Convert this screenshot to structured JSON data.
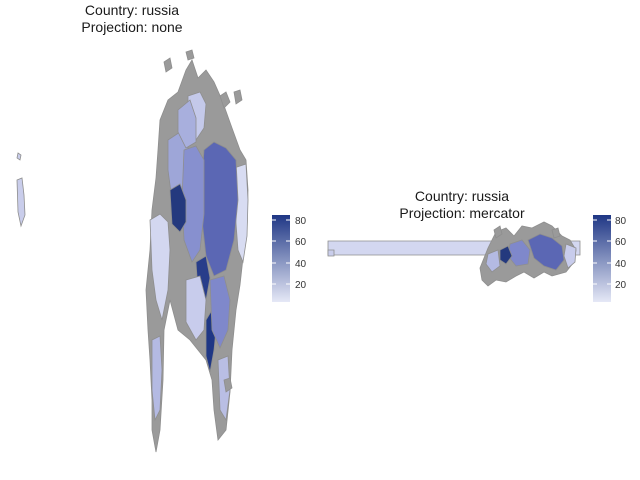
{
  "panels": [
    {
      "title_line1": "Country: russia",
      "title_line2": "Projection: none",
      "legend_ticks": [
        20,
        40,
        60,
        80
      ]
    },
    {
      "title_line1": "Country: russia",
      "title_line2": "Projection: mercator",
      "legend_ticks": [
        20,
        40,
        60,
        80
      ]
    }
  ],
  "legend": {
    "min": 0,
    "max": 85,
    "color_low": "#e5e8f6",
    "color_high": "#1f3785"
  },
  "colors": {
    "border": "#8e8e8e",
    "missing_fill": "#9a9a9a"
  }
}
